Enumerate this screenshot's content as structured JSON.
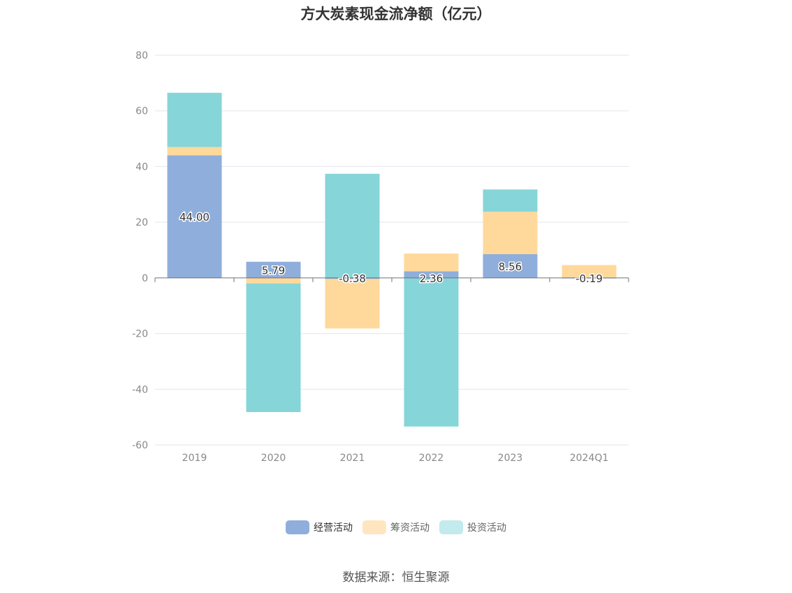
{
  "title": "方大炭素现金流净额（亿元）",
  "source": "数据来源：恒生聚源",
  "chart_data": {
    "type": "bar",
    "stacked": true,
    "title": "方大炭素现金流净额（亿元）",
    "categories": [
      "2019",
      "2020",
      "2021",
      "2022",
      "2023",
      "2024Q1"
    ],
    "ylim": [
      -60,
      80
    ],
    "yticks": [
      80,
      60,
      40,
      20,
      0,
      -20,
      -40,
      -60
    ],
    "grid": true,
    "legend_position": "bottom",
    "series": [
      {
        "name": "经营活动",
        "color": "#8faedb",
        "values": [
          44.0,
          5.79,
          -0.38,
          2.36,
          8.56,
          -0.19
        ]
      },
      {
        "name": "筹资活动",
        "color": "#ffd99b",
        "values": [
          3.0,
          -2.0,
          -17.8,
          6.4,
          15.2,
          4.6
        ]
      },
      {
        "name": "投资活动",
        "color": "#86d5d9",
        "values": [
          19.5,
          -46.2,
          37.4,
          -53.4,
          8.0,
          0
        ]
      }
    ],
    "data_labels": [
      "44.00",
      "5.79",
      "-0.38",
      "2.36",
      "8.56",
      "-0.19"
    ]
  }
}
